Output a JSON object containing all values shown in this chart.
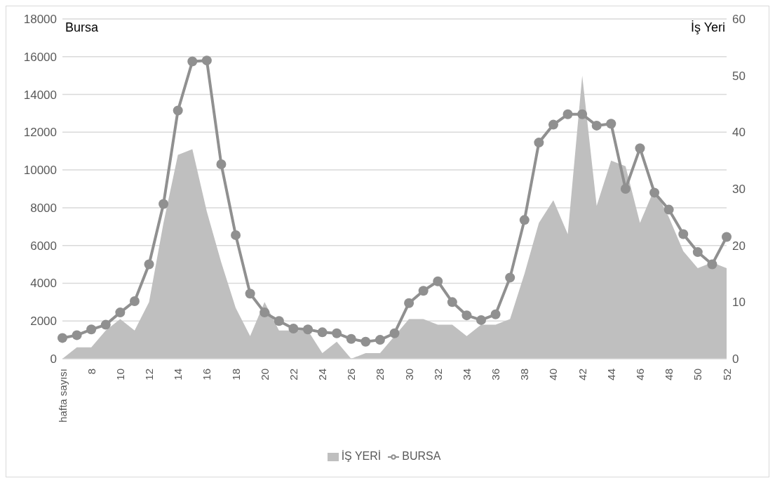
{
  "chart_data": {
    "type": "line",
    "categories": [
      "hafta sayısı",
      null,
      "8",
      null,
      "10",
      null,
      "12",
      null,
      "14",
      null,
      "16",
      null,
      "18",
      null,
      "20",
      null,
      "22",
      null,
      "24",
      null,
      "26",
      null,
      "28",
      null,
      "30",
      null,
      "32",
      null,
      "34",
      null,
      "36",
      null,
      "38",
      null,
      "40",
      null,
      "42",
      null,
      "44",
      null,
      "46",
      null,
      "48",
      null,
      "50",
      null,
      "52"
    ],
    "series": [
      {
        "name": "İŞ YERİ",
        "type": "area",
        "axis": "y2",
        "color": "#bfbfbf",
        "values": [
          0,
          2,
          2,
          5,
          7,
          5,
          10,
          24,
          36,
          37,
          26,
          17,
          9,
          4,
          10,
          5,
          5,
          5,
          1,
          3,
          0,
          1,
          1,
          4,
          7,
          7,
          6,
          6,
          4,
          6,
          6,
          7,
          15,
          24,
          28,
          22,
          50,
          27,
          35,
          34,
          24,
          30,
          25,
          19,
          16,
          17,
          16
        ]
      },
      {
        "name": "BURSA",
        "marker": "circle",
        "color": "#909090",
        "values": [
          1100,
          1250,
          1550,
          1800,
          2450,
          3050,
          5000,
          8200,
          13150,
          15750,
          15800,
          10300,
          6550,
          3450,
          2450,
          2000,
          1600,
          1550,
          1400,
          1350,
          1050,
          900,
          1000,
          1350,
          2950,
          3600,
          4100,
          3000,
          2300,
          2050,
          2350,
          4300,
          7350,
          11450,
          12400,
          12950,
          12950,
          12350,
          12450,
          9000,
          11150,
          8800,
          7900,
          6600,
          5650,
          5000,
          6450
        ]
      }
    ],
    "ylabel": "Bursa",
    "y2label": "İş Yeri",
    "ylim": [
      0,
      18000
    ],
    "yticks": [
      0,
      2000,
      4000,
      6000,
      8000,
      10000,
      12000,
      14000,
      16000,
      18000
    ],
    "y2lim": [
      0,
      60
    ],
    "y2ticks": [
      0,
      10,
      20,
      30,
      40,
      50,
      60
    ],
    "grid": "y",
    "legend": "bottom",
    "line_style": "solid"
  }
}
